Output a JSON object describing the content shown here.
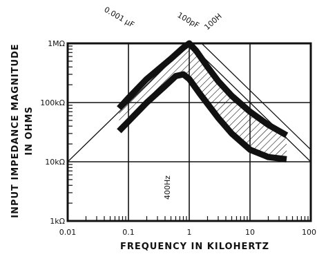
{
  "chart_data": {
    "type": "line",
    "xlabel": "FREQUENCY IN KILOHERTZ",
    "ylabel_line1": "INPUT IMPEDANCE MAGNITUDE",
    "ylabel_line2": "IN OHMS",
    "x_scale": "log",
    "y_scale": "log",
    "xlim": [
      0.01,
      100
    ],
    "ylim": [
      1000,
      1000000
    ],
    "x_ticks": [
      {
        "value": 0.01,
        "label": "0.01"
      },
      {
        "value": 0.1,
        "label": "0.1"
      },
      {
        "value": 1,
        "label": "1"
      },
      {
        "value": 10,
        "label": "10"
      },
      {
        "value": 100,
        "label": "100"
      }
    ],
    "y_ticks": [
      {
        "value": 1000,
        "label": "1kΩ"
      },
      {
        "value": 10000,
        "label": "10kΩ"
      },
      {
        "value": 100000,
        "label": "100kΩ"
      },
      {
        "value": 1000000,
        "label": "1MΩ"
      }
    ],
    "grid": true,
    "annotations": {
      "cap_small": "0.001 μF",
      "cap_large": "100pF",
      "inductor": "100H",
      "freq_marker": "400Hz"
    },
    "series": [
      {
        "role": "upper-bound",
        "x": [
          0.07,
          0.1,
          0.2,
          0.5,
          0.8,
          1.0,
          1.3,
          2.0,
          3.0,
          5.0,
          10.0,
          20.0,
          40.0
        ],
        "y": [
          80000,
          120000,
          250000,
          550000,
          850000,
          1000000,
          750000,
          400000,
          230000,
          130000,
          70000,
          42000,
          28000
        ]
      },
      {
        "role": "lower-bound",
        "x": [
          0.07,
          0.1,
          0.2,
          0.4,
          0.6,
          0.8,
          1.0,
          1.5,
          2.0,
          3.0,
          5.0,
          10.0,
          20.0,
          40.0
        ],
        "y": [
          33000,
          48000,
          100000,
          190000,
          280000,
          300000,
          250000,
          140000,
          95000,
          55000,
          30000,
          16000,
          12000,
          11000
        ]
      },
      {
        "role": "reference-line-capacitor-0.001uF",
        "x": [
          0.01,
          1.0
        ],
        "y": [
          10000,
          1000000
        ]
      },
      {
        "role": "reference-line-capacitor-100pF",
        "x": [
          1.0,
          100
        ],
        "y": [
          1000000,
          10000
        ]
      },
      {
        "role": "reference-line-inductor-100H",
        "x": [
          1.6,
          100
        ],
        "y": [
          1000000,
          16000
        ]
      }
    ]
  }
}
